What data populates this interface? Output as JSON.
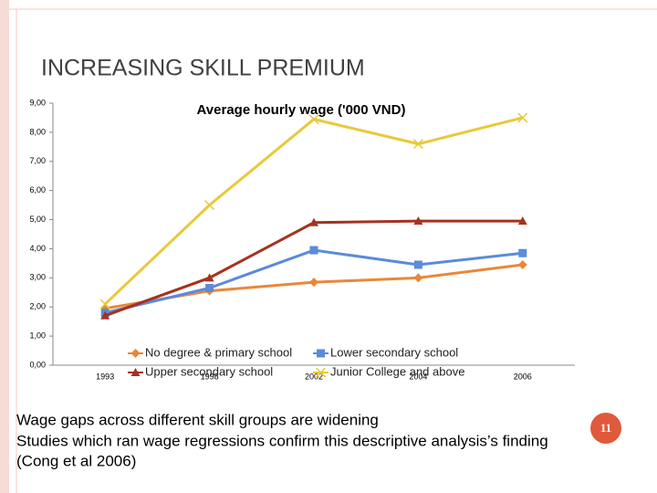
{
  "slide": {
    "title": "INCREASING SKILL PREMIUM",
    "body": [
      "Wage gaps across different skill groups are widening",
      "Studies which ran wage regressions confirm this descriptive analysis’s finding",
      "(Cong et al 2006)"
    ],
    "page_number": "11"
  },
  "chart_data": {
    "type": "line",
    "title": "Average hourly wage  ('000 VND)",
    "categories": [
      "1993",
      "1998",
      "2002",
      "2004",
      "2006"
    ],
    "series": [
      {
        "name": "No degree & primary school",
        "color": "#e8883a",
        "marker": "diamond",
        "values": [
          1.95,
          2.55,
          2.85,
          3.0,
          3.45
        ]
      },
      {
        "name": "Lower secondary school",
        "color": "#5b8bd9",
        "marker": "square",
        "values": [
          1.8,
          2.65,
          3.95,
          3.45,
          3.85
        ]
      },
      {
        "name": "Upper secondary school",
        "color": "#a5321f",
        "marker": "triangle",
        "values": [
          1.7,
          3.0,
          4.9,
          4.95,
          4.95
        ]
      },
      {
        "name": "Junior College and above",
        "color": "#e9c93a",
        "marker": "x",
        "values": [
          2.1,
          5.5,
          8.45,
          7.6,
          8.5
        ]
      }
    ],
    "ylim": [
      0,
      9
    ],
    "yticks": [
      {
        "value": 0,
        "label": "0,00"
      },
      {
        "value": 1,
        "label": "1,00"
      },
      {
        "value": 2,
        "label": "2,00"
      },
      {
        "value": 3,
        "label": "3,00"
      },
      {
        "value": 4,
        "label": "4,00"
      },
      {
        "value": 5,
        "label": "5,00"
      },
      {
        "value": 6,
        "label": "6,00"
      },
      {
        "value": 7,
        "label": "7,00"
      },
      {
        "value": 8,
        "label": "8,00"
      },
      {
        "value": 9,
        "label": "9,00"
      }
    ]
  }
}
